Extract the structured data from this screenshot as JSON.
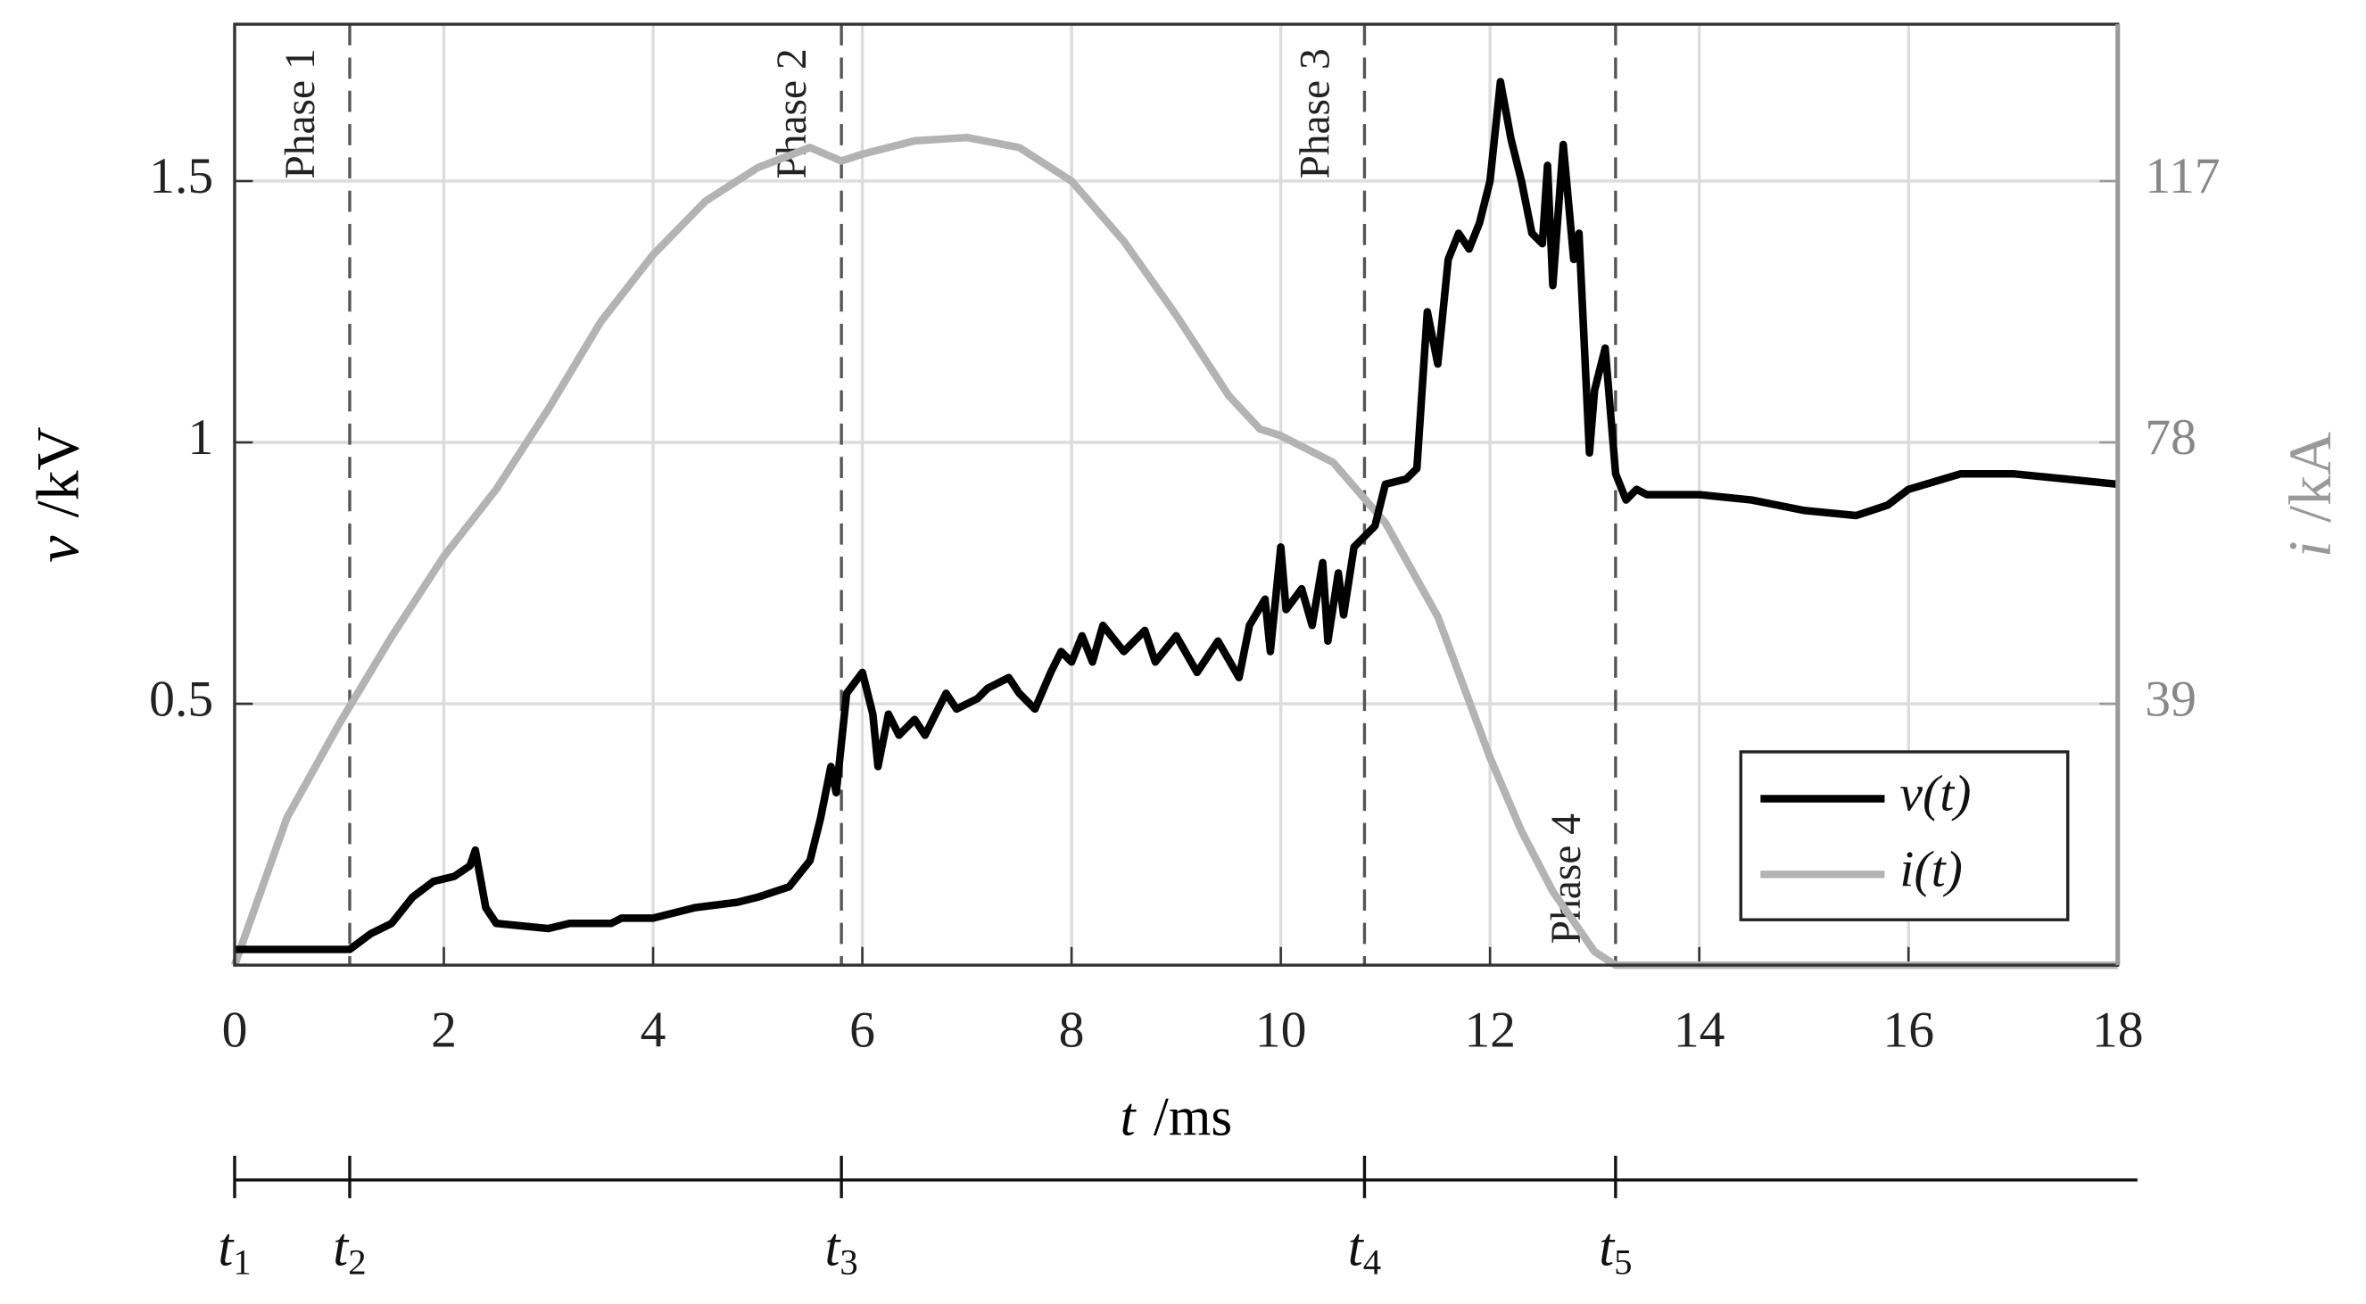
{
  "chart_data": {
    "type": "line",
    "xlabel_symbol": "t",
    "xlabel_unit": "/ms",
    "ylabel_symbol": "v",
    "ylabel_unit": "/kV",
    "y2label_symbol": "i",
    "y2label_unit": "/kA",
    "xlim": [
      0,
      18
    ],
    "xticks": [
      0,
      2,
      4,
      6,
      8,
      10,
      12,
      14,
      16,
      18
    ],
    "ylim": [
      0,
      1.8
    ],
    "yticks": [
      0.5,
      1,
      1.5
    ],
    "y2lim": [
      0,
      140.4
    ],
    "y2ticks": [
      39,
      78,
      117
    ],
    "grid": true,
    "legend": "lower right",
    "series": [
      {
        "name": "v(t)",
        "color": "#000000",
        "axis": "y",
        "x": [
          0,
          1.0,
          1.1,
          1.3,
          1.5,
          1.7,
          1.9,
          2.1,
          2.25,
          2.3,
          2.4,
          2.5,
          3.0,
          3.2,
          3.6,
          3.7,
          4.0,
          4.4,
          4.8,
          5.0,
          5.3,
          5.5,
          5.6,
          5.7,
          5.75,
          5.85,
          6.0,
          6.1,
          6.15,
          6.25,
          6.35,
          6.5,
          6.6,
          6.7,
          6.8,
          6.9,
          7.1,
          7.2,
          7.4,
          7.5,
          7.65,
          7.8,
          7.9,
          8.0,
          8.1,
          8.2,
          8.3,
          8.5,
          8.7,
          8.8,
          9.0,
          9.2,
          9.4,
          9.6,
          9.7,
          9.85,
          9.9,
          10.0,
          10.05,
          10.2,
          10.3,
          10.4,
          10.45,
          10.55,
          10.6,
          10.7,
          10.9,
          11.0,
          11.2,
          11.3,
          11.4,
          11.5,
          11.6,
          11.7,
          11.8,
          11.9,
          12.0,
          12.1,
          12.2,
          12.3,
          12.4,
          12.5,
          12.55,
          12.6,
          12.7,
          12.8,
          12.85,
          12.95,
          13.0,
          13.1,
          13.2,
          13.3,
          13.4,
          13.5,
          14.0,
          14.5,
          15.0,
          15.5,
          15.8,
          16.0,
          16.5,
          17.0,
          17.5,
          18.0
        ],
        "values": [
          0.03,
          0.03,
          0.03,
          0.06,
          0.08,
          0.13,
          0.16,
          0.17,
          0.19,
          0.22,
          0.11,
          0.08,
          0.07,
          0.08,
          0.08,
          0.09,
          0.09,
          0.11,
          0.12,
          0.13,
          0.15,
          0.2,
          0.28,
          0.38,
          0.33,
          0.52,
          0.56,
          0.48,
          0.38,
          0.48,
          0.44,
          0.47,
          0.44,
          0.48,
          0.52,
          0.49,
          0.51,
          0.53,
          0.55,
          0.52,
          0.49,
          0.56,
          0.6,
          0.58,
          0.63,
          0.58,
          0.65,
          0.6,
          0.64,
          0.58,
          0.63,
          0.56,
          0.62,
          0.55,
          0.65,
          0.7,
          0.6,
          0.8,
          0.68,
          0.72,
          0.65,
          0.77,
          0.62,
          0.75,
          0.67,
          0.8,
          0.84,
          0.92,
          0.93,
          0.95,
          1.25,
          1.15,
          1.35,
          1.4,
          1.37,
          1.42,
          1.5,
          1.69,
          1.58,
          1.5,
          1.4,
          1.38,
          1.53,
          1.3,
          1.57,
          1.35,
          1.4,
          0.98,
          1.1,
          1.18,
          0.94,
          0.89,
          0.91,
          0.9,
          0.9,
          0.89,
          0.87,
          0.86,
          0.88,
          0.91,
          0.94,
          0.94,
          0.93,
          0.92
        ]
      },
      {
        "name": "i(t)",
        "color": "#b3b3b3",
        "axis": "y2",
        "x": [
          0,
          0.5,
          1.0,
          1.5,
          2.0,
          2.5,
          3.0,
          3.5,
          4.0,
          4.5,
          5.0,
          5.5,
          5.8,
          6.0,
          6.5,
          7.0,
          7.5,
          8.0,
          8.5,
          9.0,
          9.5,
          9.8,
          10.0,
          10.5,
          11.0,
          11.5,
          12.0,
          12.3,
          12.6,
          13.0,
          13.2,
          18.0
        ],
        "values": [
          0,
          22,
          36,
          49,
          61,
          71,
          83,
          96,
          106,
          114,
          119,
          122,
          120,
          121,
          123,
          123.5,
          122,
          117,
          108,
          97,
          85,
          80,
          79,
          75,
          66,
          52,
          31,
          20,
          11,
          2,
          0,
          0
        ]
      }
    ],
    "phases": [
      "Phase 1",
      "Phase 2",
      "Phase 3",
      "Phase 4"
    ],
    "events": [
      {
        "symbol": "t",
        "sub": "1",
        "t": 0
      },
      {
        "symbol": "t",
        "sub": "2",
        "t": 1.1
      },
      {
        "symbol": "t",
        "sub": "3",
        "t": 5.8
      },
      {
        "symbol": "t",
        "sub": "4",
        "t": 10.8
      },
      {
        "symbol": "t",
        "sub": "5",
        "t": 13.2
      }
    ]
  }
}
